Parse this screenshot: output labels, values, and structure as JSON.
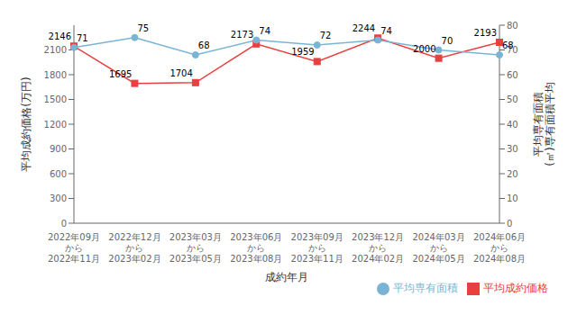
{
  "chart_data": {
    "type": "line",
    "categories": [
      "2022年09月\nから\n2022年11月",
      "2022年12月\nから\n2023年02月",
      "2023年03月\nから\n2023年05月",
      "2023年06月\nから\n2023年08月",
      "2023年09月\nから\n2023年11月",
      "2023年12月\nから\n2024年02月",
      "2024年03月\nから\n2024年05月",
      "2024年06月\nから\n2024年08月"
    ],
    "xlabel": "成約年月",
    "ylabel": "平均成約価格(万円)",
    "y2label": "平均専有面積\n(㎡)専有面積平均",
    "ylim": [
      0,
      2400
    ],
    "yticks": [
      0,
      300,
      600,
      900,
      1200,
      1500,
      1800,
      2100
    ],
    "y2lim": [
      0,
      80
    ],
    "y2ticks": [
      0,
      10,
      20,
      30,
      40,
      50,
      60,
      70,
      80
    ],
    "series": [
      {
        "name": "平均成約価格",
        "color": "#e84040",
        "marker": "square",
        "values": [
          2146,
          1695,
          1704,
          2173,
          1959,
          2244,
          2000,
          2193
        ]
      },
      {
        "name": "平均専有面積",
        "color": "#7ab4d4",
        "marker": "circle",
        "axis": "y2",
        "values": [
          71,
          75,
          68,
          74,
          72,
          74,
          70,
          68
        ]
      }
    ],
    "data_labels": true,
    "legend": "lower right",
    "grid": false
  }
}
